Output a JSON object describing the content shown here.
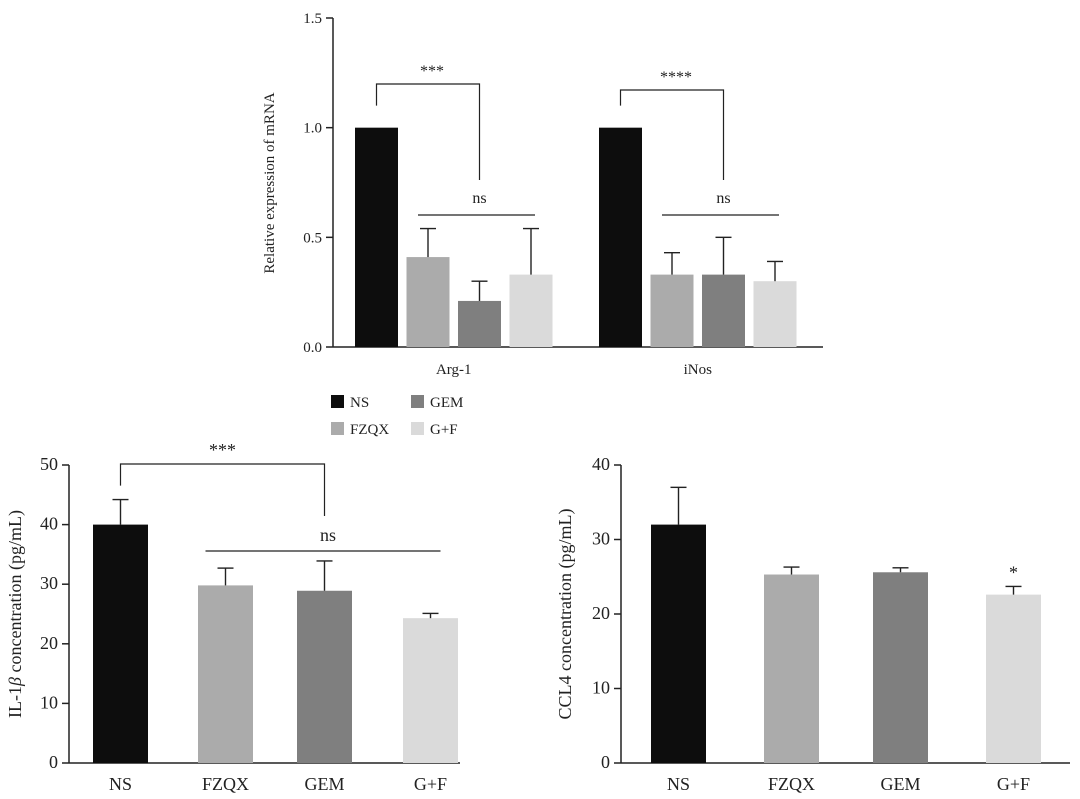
{
  "colors": {
    "NS": "#0d0d0d",
    "FZQX": "#ababab",
    "GEM": "#7f7f7f",
    "G+F": "#dadada",
    "axis": "#222222"
  },
  "legend": {
    "entries": [
      "NS",
      "GEM",
      "FZQX",
      "G+F"
    ]
  },
  "chart_data": [
    {
      "type": "bar",
      "ylabel": "Relative expression of mRNA",
      "ylim": [
        0,
        1.5
      ],
      "yticks": [
        "0.0",
        "0.5",
        "1.0",
        "1.5"
      ],
      "categories": [
        "Arg-1",
        "iNos"
      ],
      "series": [
        {
          "name": "NS",
          "values": [
            1.0,
            1.0
          ],
          "errors": [
            0,
            0
          ]
        },
        {
          "name": "FZQX",
          "values": [
            0.41,
            0.33
          ],
          "errors": [
            0.13,
            0.1
          ]
        },
        {
          "name": "GEM",
          "values": [
            0.21,
            0.33
          ],
          "errors": [
            0.09,
            0.17
          ]
        },
        {
          "name": "G+F",
          "values": [
            0.33,
            0.3
          ],
          "errors": [
            0.21,
            0.09
          ]
        }
      ],
      "annotations": [
        {
          "group": 0,
          "from": 0,
          "to": 2,
          "label": "***"
        },
        {
          "group": 0,
          "from": 1,
          "to": 3,
          "label": "ns"
        },
        {
          "group": 1,
          "from": 0,
          "to": 2,
          "label": "****"
        },
        {
          "group": 1,
          "from": 1,
          "to": 3,
          "label": "ns"
        }
      ]
    },
    {
      "type": "bar",
      "ylabel_prefix": "IL-1",
      "ylabel_symbol": "β",
      "ylabel_suffix": " concentration (pg/mL)",
      "ylim": [
        0,
        50
      ],
      "yticks": [
        "0",
        "10",
        "20",
        "30",
        "40",
        "50"
      ],
      "categories": [
        "NS",
        "FZQX",
        "GEM",
        "G+F"
      ],
      "values": [
        40.0,
        29.8,
        28.9,
        24.3
      ],
      "errors": [
        4.2,
        2.9,
        5.0,
        0.8
      ],
      "annotations": [
        {
          "from": 0,
          "to": 2,
          "label": "***"
        },
        {
          "from": 1,
          "to": 3,
          "label": "ns"
        }
      ]
    },
    {
      "type": "bar",
      "ylabel": "CCL4 concentration (pg/mL)",
      "ylim": [
        0,
        40
      ],
      "yticks": [
        "0",
        "10",
        "20",
        "30",
        "40"
      ],
      "categories": [
        "NS",
        "FZQX",
        "GEM",
        "G+F"
      ],
      "values": [
        32.0,
        25.3,
        25.6,
        22.6
      ],
      "errors": [
        5.0,
        1.0,
        0.6,
        1.1
      ],
      "marks": [
        {
          "bar": 3,
          "label": "*"
        }
      ]
    }
  ]
}
